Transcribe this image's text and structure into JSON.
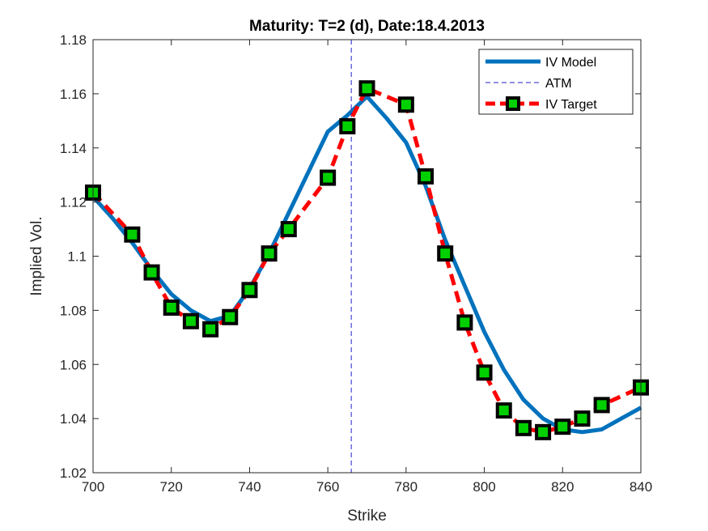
{
  "chart_data": {
    "type": "line",
    "title": "Maturity: T=2 (d), Date:18.4.2013",
    "xlabel": "Strike",
    "ylabel": "Implied Vol.",
    "xlim": [
      700,
      840
    ],
    "ylim": [
      1.02,
      1.18
    ],
    "xticks": [
      700,
      720,
      740,
      760,
      780,
      800,
      820,
      840
    ],
    "yticks": [
      1.02,
      1.04,
      1.06,
      1.08,
      1.1,
      1.12,
      1.14,
      1.16,
      1.18
    ],
    "x_tick_labels": [
      "700",
      "720",
      "740",
      "760",
      "780",
      "800",
      "820",
      "840"
    ],
    "y_tick_labels": [
      "1.02",
      "1.04",
      "1.06",
      "1.08",
      "1.1",
      "1.12",
      "1.14",
      "1.16",
      "1.18"
    ],
    "grid": false,
    "legend_position": "top-right",
    "atm_strike": 766,
    "series": [
      {
        "name": "IV Model",
        "style": "solid",
        "color": "#0072BD",
        "x": [
          700,
          705,
          710,
          715,
          720,
          725,
          730,
          735,
          740,
          745,
          750,
          755,
          760,
          765,
          770,
          775,
          780,
          785,
          790,
          795,
          800,
          805,
          810,
          815,
          820,
          825,
          830,
          835,
          840
        ],
        "y": [
          1.122,
          1.114,
          1.105,
          1.095,
          1.086,
          1.08,
          1.076,
          1.078,
          1.088,
          1.101,
          1.116,
          1.131,
          1.146,
          1.152,
          1.159,
          1.151,
          1.142,
          1.126,
          1.106,
          1.089,
          1.072,
          1.058,
          1.047,
          1.04,
          1.036,
          1.035,
          1.036,
          1.04,
          1.044
        ]
      },
      {
        "name": "ATM",
        "style": "dashed",
        "color": "#2222CC"
      },
      {
        "name": "IV Target",
        "style": "dashed-markers",
        "color": "#FF0000",
        "marker_fill": "#00D000",
        "marker_edge": "#000000",
        "x": [
          700,
          710,
          715,
          720,
          725,
          730,
          735,
          740,
          745,
          750,
          760,
          765,
          770,
          780,
          785,
          790,
          795,
          800,
          805,
          810,
          815,
          820,
          825,
          830,
          840
        ],
        "y": [
          1.1235,
          1.108,
          1.094,
          1.081,
          1.076,
          1.073,
          1.0775,
          1.0875,
          1.101,
          1.11,
          1.129,
          1.148,
          1.162,
          1.156,
          1.1295,
          1.101,
          1.0755,
          1.057,
          1.043,
          1.0365,
          1.035,
          1.037,
          1.04,
          1.045,
          1.0515
        ]
      }
    ]
  }
}
